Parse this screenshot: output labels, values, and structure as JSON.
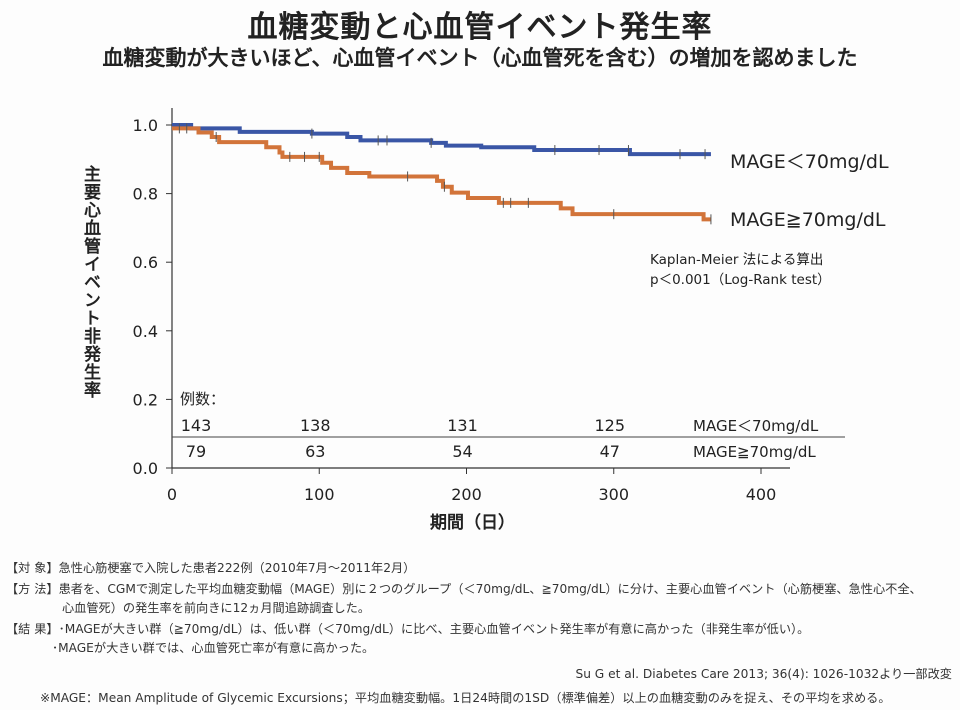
{
  "title": "血糖変動と心血管イベント発生率",
  "subtitle": "血糖変動が大きいほど、心血管イベント（心血管死を含む）の増加を認めました",
  "chart_data": {
    "type": "line",
    "subtype": "kaplan-meier step",
    "xlabel": "期間（日）",
    "ylabel": "主要心血管イベント非発生率",
    "xlim": [
      0,
      400
    ],
    "ylim": [
      0,
      1.0
    ],
    "x_ticks": [
      "0",
      "100",
      "200",
      "300",
      "400"
    ],
    "y_ticks": [
      "0.0",
      "0.2",
      "0.4",
      "0.6",
      "0.8",
      "1.0"
    ],
    "grid": false,
    "legend_placement": "right",
    "series": [
      {
        "name": "MAGE＜70mg/dL",
        "color": "#3a56a6",
        "steps": [
          [
            0,
            1.0
          ],
          [
            13,
            0.99
          ],
          [
            46,
            0.98
          ],
          [
            95,
            0.975
          ],
          [
            119,
            0.965
          ],
          [
            128,
            0.955
          ],
          [
            176,
            0.948
          ],
          [
            186,
            0.94
          ],
          [
            210,
            0.935
          ],
          [
            246,
            0.927
          ],
          [
            311,
            0.915
          ]
        ],
        "end": 366,
        "censor": [
          95,
          140,
          146,
          176,
          260,
          290,
          310,
          345,
          362
        ]
      },
      {
        "name": "MAGE≧70mg/dL",
        "color": "#d2743a",
        "steps": [
          [
            0,
            0.99
          ],
          [
            18,
            0.978
          ],
          [
            27,
            0.965
          ],
          [
            32,
            0.95
          ],
          [
            64,
            0.935
          ],
          [
            73,
            0.92
          ],
          [
            75,
            0.907
          ],
          [
            102,
            0.89
          ],
          [
            108,
            0.875
          ],
          [
            119,
            0.86
          ],
          [
            134,
            0.85
          ],
          [
            180,
            0.837
          ],
          [
            184,
            0.82
          ],
          [
            190,
            0.803
          ],
          [
            201,
            0.787
          ],
          [
            222,
            0.773
          ],
          [
            264,
            0.757
          ],
          [
            272,
            0.74
          ],
          [
            361,
            0.725
          ]
        ],
        "end": 366,
        "censor": [
          5,
          10,
          30,
          80,
          90,
          100,
          160,
          185,
          225,
          230,
          242,
          300,
          366
        ]
      }
    ],
    "annotations": [
      "Kaplan-Meier 法による算出",
      "p＜0.001（Log-Rank test）"
    ],
    "risk_table": {
      "header": "例数：",
      "days": [
        0,
        100,
        200,
        300
      ],
      "rows": [
        {
          "label": "MAGE＜70mg/dL",
          "values": [
            "143",
            "138",
            "131",
            "125"
          ]
        },
        {
          "label": "MAGE≧70mg/dL",
          "values": [
            "79",
            "63",
            "54",
            "47"
          ]
        }
      ]
    }
  },
  "notes": {
    "target": "【対 象】急性心筋梗塞で入院した患者222例（2010年7月～2011年2月）",
    "method1": "【方 法】患者を、CGMで測定した平均血糖変動幅（MAGE）別に２つのグループ（＜70mg/dL、≧70mg/dL）に分け、主要心血管イベント（心筋梗塞、急性心不全、",
    "method2": "心血管死）の発生率を前向きに12ヵ月間追跡調査した。",
    "result1": "【結 果】･MAGEが大きい群（≧70mg/dL）は、低い群（＜70mg/dL）に比べ、主要心血管イベント発生率が有意に高かった（非発生率が低い）。",
    "result2": "･MAGEが大きい群では、心血管死亡率が有意に高かった。",
    "citation": "Su G et al. Diabetes Care 2013; 36(4): 1026-1032より一部改変",
    "footnote": "※MAGE：Mean Amplitude of Glycemic Excursions；平均血糖変動幅。1日24時間の1SD（標準偏差）以上の血糖変動のみを捉え、その平均を求める。"
  }
}
